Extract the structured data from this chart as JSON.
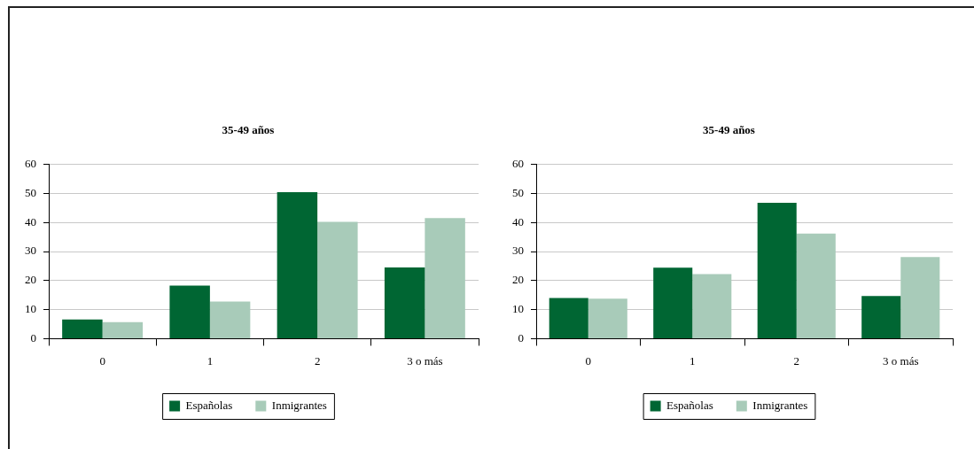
{
  "chart_data": [
    {
      "type": "bar",
      "title": "35-49 años",
      "categories": [
        "0",
        "1",
        "2",
        "3 o más"
      ],
      "series": [
        {
          "name": "Españolas",
          "color": "#006633",
          "values": [
            6.6,
            18.3,
            50.4,
            24.5
          ]
        },
        {
          "name": "Inmigrantes",
          "color": "#a8cbb9",
          "values": [
            5.7,
            12.8,
            40.2,
            41.5
          ]
        }
      ],
      "ylim": [
        0,
        60
      ],
      "yticks": [
        0,
        10,
        20,
        30,
        40,
        50,
        60
      ],
      "grid": "y",
      "legend": "bottom"
    },
    {
      "type": "bar",
      "title": "35-49 años",
      "categories": [
        "0",
        "1",
        "2",
        "3 o más"
      ],
      "series": [
        {
          "name": "Españolas",
          "color": "#006633",
          "values": [
            14.0,
            24.4,
            46.8,
            14.7
          ]
        },
        {
          "name": "Inmigrantes",
          "color": "#a8cbb9",
          "values": [
            13.8,
            22.2,
            36.2,
            28.1
          ]
        }
      ],
      "ylim": [
        0,
        60
      ],
      "yticks": [
        0,
        10,
        20,
        30,
        40,
        50,
        60
      ],
      "grid": "y",
      "legend": "bottom"
    }
  ]
}
